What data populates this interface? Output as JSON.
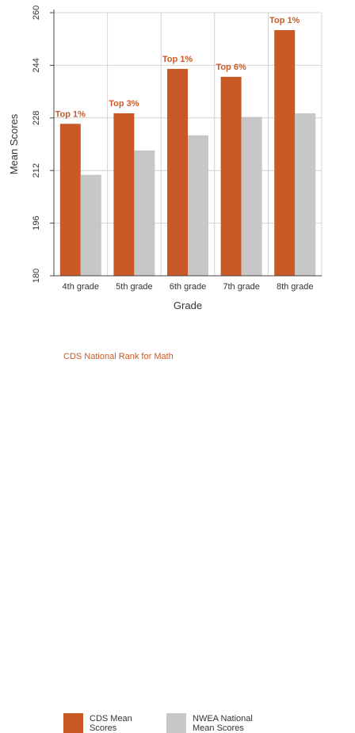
{
  "chart_data": {
    "type": "bar",
    "xlabel": "Grade",
    "ylabel": "Mean Scores",
    "ylim": [
      180,
      260
    ],
    "yticks": [
      180,
      196,
      212,
      228,
      244,
      260
    ],
    "categories": [
      "4th grade",
      "5th grade",
      "6th grade",
      "7th grade",
      "8th grade"
    ],
    "series": [
      {
        "name": "CDS Mean Scores",
        "color": "#c95a28",
        "values": [
          226.2,
          229.4,
          242.9,
          240.5,
          254.7
        ]
      },
      {
        "name": "NWEA National Mean Scores",
        "color": "#c7c7c7",
        "values": [
          210.7,
          218.1,
          222.7,
          228.3,
          229.4
        ]
      }
    ],
    "annotations": [
      "Top 1%",
      "Top 3%",
      "Top 1%",
      "Top 6%",
      "Top 1%"
    ],
    "annotation_color": "#c95a28",
    "grid": true,
    "legend_position": "bottom-left"
  },
  "legend": {
    "cds_label": "CDS Mean Scores",
    "nwea_label": "NWEA National Mean Scores",
    "rank_note": "CDS National Rank for Math"
  }
}
